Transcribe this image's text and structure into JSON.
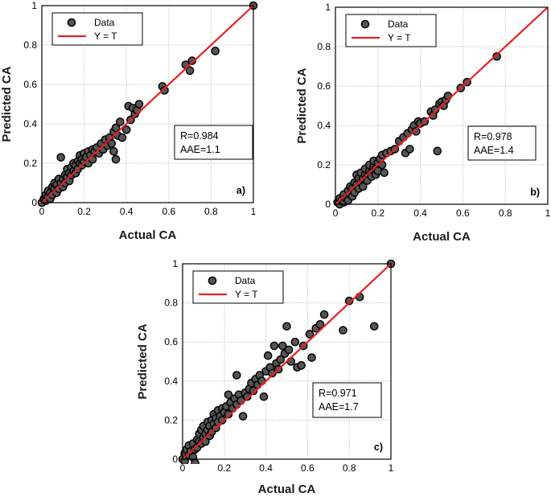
{
  "chart_data": [
    {
      "type": "scatter",
      "panel_label": "a)",
      "xlabel": "Actual CA",
      "ylabel": "Predicted CA",
      "xlim": [
        0,
        1
      ],
      "ylim": [
        0,
        1
      ],
      "xticks": [
        "0",
        "0.2",
        "0.4",
        "0.6",
        "0.8",
        "1"
      ],
      "yticks": [
        "0",
        "0.2",
        "0.4",
        "0.6",
        "0.8",
        "1"
      ],
      "grid": true,
      "legend": {
        "placement": "top-left",
        "entries": [
          "Data",
          "Y = T"
        ]
      },
      "stats": [
        "R=0.984",
        "AAE=1.1"
      ],
      "series": [
        {
          "name": "Data",
          "kind": "points",
          "color": "#555555",
          "points": [
            [
              0,
              0
            ],
            [
              0.01,
              0.02
            ],
            [
              0.02,
              0.01
            ],
            [
              0.02,
              0.04
            ],
            [
              0.03,
              0.03
            ],
            [
              0.03,
              0.06
            ],
            [
              0.04,
              0.02
            ],
            [
              0.04,
              0.05
            ],
            [
              0.05,
              0.08
            ],
            [
              0.05,
              0.04
            ],
            [
              0.06,
              0.07
            ],
            [
              0.06,
              0.1
            ],
            [
              0.07,
              0.05
            ],
            [
              0.07,
              0.09
            ],
            [
              0.08,
              0.12
            ],
            [
              0.08,
              0.07
            ],
            [
              0.09,
              0.1
            ],
            [
              0.09,
              0.23
            ],
            [
              0.1,
              0.12
            ],
            [
              0.1,
              0.08
            ],
            [
              0.11,
              0.14
            ],
            [
              0.11,
              0.1
            ],
            [
              0.12,
              0.13
            ],
            [
              0.12,
              0.17
            ],
            [
              0.13,
              0.11
            ],
            [
              0.13,
              0.15
            ],
            [
              0.14,
              0.18
            ],
            [
              0.14,
              0.14
            ],
            [
              0.15,
              0.16
            ],
            [
              0.15,
              0.2
            ],
            [
              0.16,
              0.15
            ],
            [
              0.16,
              0.19
            ],
            [
              0.17,
              0.21
            ],
            [
              0.17,
              0.17
            ],
            [
              0.18,
              0.2
            ],
            [
              0.18,
              0.24
            ],
            [
              0.19,
              0.19
            ],
            [
              0.19,
              0.22
            ],
            [
              0.2,
              0.25
            ],
            [
              0.2,
              0.21
            ],
            [
              0.21,
              0.23
            ],
            [
              0.22,
              0.26
            ],
            [
              0.22,
              0.2
            ],
            [
              0.23,
              0.24
            ],
            [
              0.24,
              0.27
            ],
            [
              0.24,
              0.22
            ],
            [
              0.25,
              0.26
            ],
            [
              0.26,
              0.28
            ],
            [
              0.27,
              0.25
            ],
            [
              0.28,
              0.3
            ],
            [
              0.29,
              0.27
            ],
            [
              0.3,
              0.32
            ],
            [
              0.31,
              0.29
            ],
            [
              0.32,
              0.33
            ],
            [
              0.33,
              0.3
            ],
            [
              0.34,
              0.36
            ],
            [
              0.34,
              0.26
            ],
            [
              0.35,
              0.38
            ],
            [
              0.35,
              0.22
            ],
            [
              0.36,
              0.34
            ],
            [
              0.37,
              0.41
            ],
            [
              0.38,
              0.33
            ],
            [
              0.4,
              0.37
            ],
            [
              0.41,
              0.49
            ],
            [
              0.42,
              0.42
            ],
            [
              0.43,
              0.48
            ],
            [
              0.44,
              0.45
            ],
            [
              0.45,
              0.47
            ],
            [
              0.46,
              0.5
            ],
            [
              0.57,
              0.59
            ],
            [
              0.58,
              0.57
            ],
            [
              0.68,
              0.7
            ],
            [
              0.7,
              0.67
            ],
            [
              0.71,
              0.72
            ],
            [
              0.82,
              0.77
            ],
            [
              1.0,
              1.0
            ]
          ]
        },
        {
          "name": "Y = T",
          "kind": "line",
          "color": "#e8201f",
          "points": [
            [
              0,
              0
            ],
            [
              1,
              1
            ]
          ]
        }
      ]
    },
    {
      "type": "scatter",
      "panel_label": "b)",
      "xlabel": "Actual CA",
      "ylabel": "Predicted CA",
      "xlim": [
        0,
        1
      ],
      "ylim": [
        0,
        1
      ],
      "xticks": [
        "0",
        "0.2",
        "0.4",
        "0.6",
        "0.8",
        "1"
      ],
      "yticks": [
        "0",
        "0.2",
        "0.4",
        "0.6",
        "0.8",
        "1"
      ],
      "grid": true,
      "legend": {
        "placement": "top-left",
        "entries": [
          "Data",
          "Y = T"
        ]
      },
      "stats": [
        "R=0.978",
        "AAE=1.4"
      ],
      "series": [
        {
          "name": "Data",
          "kind": "points",
          "color": "#555555",
          "points": [
            [
              0.01,
              0.01
            ],
            [
              0.02,
              0.03
            ],
            [
              0.02,
              0
            ],
            [
              0.03,
              0.02
            ],
            [
              0.04,
              0.05
            ],
            [
              0.04,
              0.01
            ],
            [
              0.05,
              0.03
            ],
            [
              0.06,
              0.07
            ],
            [
              0.06,
              0.02
            ],
            [
              0.07,
              0.05
            ],
            [
              0.07,
              0.09
            ],
            [
              0.08,
              0.04
            ],
            [
              0.08,
              0.08
            ],
            [
              0.09,
              0.11
            ],
            [
              0.09,
              0.06
            ],
            [
              0.1,
              0.1
            ],
            [
              0.1,
              0.15
            ],
            [
              0.11,
              0.08
            ],
            [
              0.11,
              0.13
            ],
            [
              0.12,
              0.11
            ],
            [
              0.12,
              0.16
            ],
            [
              0.13,
              0.13
            ],
            [
              0.13,
              0.09
            ],
            [
              0.14,
              0.15
            ],
            [
              0.14,
              0.18
            ],
            [
              0.15,
              0.14
            ],
            [
              0.15,
              0.12
            ],
            [
              0.16,
              0.17
            ],
            [
              0.16,
              0.2
            ],
            [
              0.17,
              0.16
            ],
            [
              0.17,
              0.14
            ],
            [
              0.18,
              0.19
            ],
            [
              0.18,
              0.22
            ],
            [
              0.19,
              0.18
            ],
            [
              0.19,
              0.15
            ],
            [
              0.2,
              0.21
            ],
            [
              0.2,
              0.17
            ],
            [
              0.21,
              0.23
            ],
            [
              0.22,
              0.2
            ],
            [
              0.22,
              0.25
            ],
            [
              0.23,
              0.16
            ],
            [
              0.24,
              0.26
            ],
            [
              0.26,
              0.27
            ],
            [
              0.28,
              0.28
            ],
            [
              0.3,
              0.32
            ],
            [
              0.32,
              0.34
            ],
            [
              0.33,
              0.26
            ],
            [
              0.34,
              0.36
            ],
            [
              0.35,
              0.28
            ],
            [
              0.36,
              0.38
            ],
            [
              0.37,
              0.4
            ],
            [
              0.38,
              0.37
            ],
            [
              0.39,
              0.42
            ],
            [
              0.4,
              0.41
            ],
            [
              0.42,
              0.42
            ],
            [
              0.45,
              0.47
            ],
            [
              0.46,
              0.45
            ],
            [
              0.47,
              0.48
            ],
            [
              0.48,
              0.27
            ],
            [
              0.49,
              0.51
            ],
            [
              0.5,
              0.52
            ],
            [
              0.51,
              0.5
            ],
            [
              0.52,
              0.53
            ],
            [
              0.53,
              0.55
            ],
            [
              0.59,
              0.59
            ],
            [
              0.62,
              0.62
            ],
            [
              0.76,
              0.75
            ]
          ]
        },
        {
          "name": "Y = T",
          "kind": "line",
          "color": "#e8201f",
          "points": [
            [
              0,
              0
            ],
            [
              1,
              1
            ]
          ]
        }
      ]
    },
    {
      "type": "scatter",
      "panel_label": "c)",
      "xlabel": "Actual CA",
      "ylabel": "Predicted CA",
      "xlim": [
        0,
        1
      ],
      "ylim": [
        0,
        1
      ],
      "xticks": [
        "0",
        "0.2",
        "0.4",
        "0.6",
        "0.8",
        "1"
      ],
      "yticks": [
        "0",
        "0.2",
        "0.4",
        "0.6",
        "0.8",
        "1"
      ],
      "grid": true,
      "legend": {
        "placement": "top-left",
        "entries": [
          "Data",
          "Y = T"
        ]
      },
      "stats": [
        "R=0.971",
        "AAE=1.7"
      ],
      "series": [
        {
          "name": "Data",
          "kind": "points",
          "color": "#555555",
          "points": [
            [
              0,
              0
            ],
            [
              0.01,
              0.03
            ],
            [
              0.01,
              -0.01
            ],
            [
              0.02,
              0.05
            ],
            [
              0.03,
              0.02
            ],
            [
              0.03,
              0.07
            ],
            [
              0.04,
              0.04
            ],
            [
              0.05,
              0.01
            ],
            [
              0.05,
              0.08
            ],
            [
              0.06,
              0.05
            ],
            [
              0.06,
              -0.02
            ],
            [
              0.07,
              0.1
            ],
            [
              0.07,
              0.06
            ],
            [
              0.08,
              0.09
            ],
            [
              0.08,
              0.13
            ],
            [
              0.09,
              0.08
            ],
            [
              0.09,
              0.15
            ],
            [
              0.1,
              0.11
            ],
            [
              0.1,
              0.17
            ],
            [
              0.11,
              0.13
            ],
            [
              0.11,
              0.09
            ],
            [
              0.12,
              0.15
            ],
            [
              0.12,
              0.19
            ],
            [
              0.13,
              0.12
            ],
            [
              0.13,
              0.17
            ],
            [
              0.14,
              0.2
            ],
            [
              0.14,
              0.14
            ],
            [
              0.15,
              0.18
            ],
            [
              0.15,
              0.23
            ],
            [
              0.16,
              0.16
            ],
            [
              0.16,
              0.21
            ],
            [
              0.17,
              0.25
            ],
            [
              0.17,
              0.19
            ],
            [
              0.18,
              0.22
            ],
            [
              0.19,
              0.2
            ],
            [
              0.19,
              0.26
            ],
            [
              0.2,
              0.24
            ],
            [
              0.21,
              0.27
            ],
            [
              0.22,
              0.33
            ],
            [
              0.22,
              0.23
            ],
            [
              0.23,
              0.29
            ],
            [
              0.24,
              0.26
            ],
            [
              0.25,
              0.31
            ],
            [
              0.26,
              0.43
            ],
            [
              0.26,
              0.28
            ],
            [
              0.27,
              0.33
            ],
            [
              0.28,
              0.3
            ],
            [
              0.29,
              0.22
            ],
            [
              0.3,
              0.34
            ],
            [
              0.31,
              0.32
            ],
            [
              0.32,
              0.36
            ],
            [
              0.33,
              0.39
            ],
            [
              0.34,
              0.35
            ],
            [
              0.35,
              0.41
            ],
            [
              0.36,
              0.38
            ],
            [
              0.37,
              0.43
            ],
            [
              0.38,
              0.4
            ],
            [
              0.39,
              0.32
            ],
            [
              0.4,
              0.45
            ],
            [
              0.41,
              0.53
            ],
            [
              0.42,
              0.47
            ],
            [
              0.43,
              0.44
            ],
            [
              0.44,
              0.58
            ],
            [
              0.45,
              0.49
            ],
            [
              0.46,
              0.46
            ],
            [
              0.47,
              0.51
            ],
            [
              0.48,
              0.58
            ],
            [
              0.49,
              0.54
            ],
            [
              0.5,
              0.68
            ],
            [
              0.51,
              0.56
            ],
            [
              0.52,
              0.5
            ],
            [
              0.54,
              0.6
            ],
            [
              0.55,
              0.47
            ],
            [
              0.57,
              0.48
            ],
            [
              0.58,
              0.58
            ],
            [
              0.61,
              0.64
            ],
            [
              0.62,
              0.52
            ],
            [
              0.64,
              0.67
            ],
            [
              0.66,
              0.69
            ],
            [
              0.68,
              0.74
            ],
            [
              0.77,
              0.66
            ],
            [
              0.8,
              0.81
            ],
            [
              0.85,
              0.83
            ],
            [
              0.92,
              0.68
            ],
            [
              1.0,
              1.0
            ]
          ]
        },
        {
          "name": "Y = T",
          "kind": "line",
          "color": "#e8201f",
          "points": [
            [
              0,
              0
            ],
            [
              1,
              1
            ]
          ]
        }
      ]
    }
  ]
}
